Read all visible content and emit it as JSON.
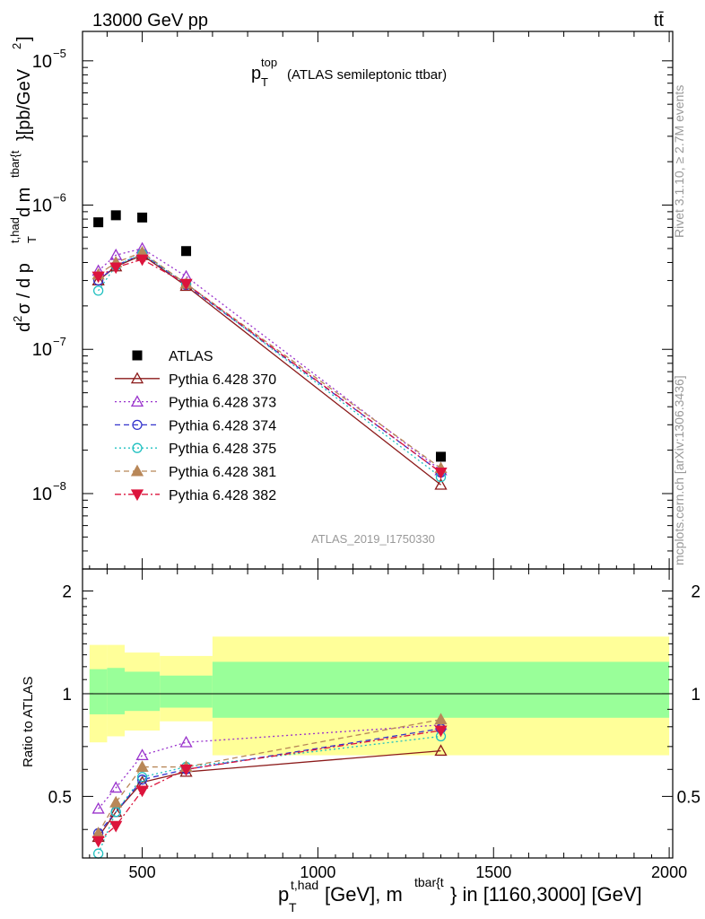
{
  "header": {
    "beam": "13000 GeV pp",
    "process": "tt̄"
  },
  "side": {
    "rivet": "Rivet 3.1.10, ≥ 2.7M events",
    "mcplots": "mcplots.cern.ch [arXiv:1306.3436]"
  },
  "chart_data": {
    "type": "scatter",
    "title": {
      "main": "p",
      "sub": "T",
      "sup": "top",
      "rest": "(ATLAS semileptonic ttbar)"
    },
    "analysis_label": "ATLAS_2019_I1750330",
    "yscale": "log",
    "ylim": [
      3e-09,
      1.6e-05
    ],
    "xlim": [
      330,
      2010
    ],
    "ratio_ylim": [
      0.33,
      2.32
    ],
    "ylabel": {
      "d2": "d",
      "two": "2",
      "sigma": "σ / d p",
      "T": "T",
      "thad": "t,had",
      "dm": " d m",
      "tbar": "tbar{t",
      "rest": "}[pb/GeV",
      "sq": "2",
      "close": "]"
    },
    "ratio_ylabel": "Ratio to ATLAS",
    "xlabel": {
      "p": "p",
      "T": "T",
      "thad": "t,had",
      "mid": " [GeV], m",
      "tbar": "tbar{t",
      "rest": "} in [1160,3000] [GeV]"
    },
    "y_ticks": [
      {
        "base": "10",
        "exp": "−5",
        "value": 1e-05
      },
      {
        "base": "10",
        "exp": "−6",
        "value": 1e-06
      },
      {
        "base": "10",
        "exp": "−7",
        "value": 1e-07
      },
      {
        "base": "10",
        "exp": "−8",
        "value": 1e-08
      }
    ],
    "ratio_ticks": [
      {
        "label": "0.5",
        "value": 0.5
      },
      {
        "label": "1",
        "value": 1
      },
      {
        "label": "2",
        "value": 2
      }
    ],
    "x_ticks": [
      {
        "label": "500",
        "value": 500
      },
      {
        "label": "1000",
        "value": 1000
      },
      {
        "label": "1500",
        "value": 1500
      },
      {
        "label": "2000",
        "value": 2000
      }
    ],
    "data": {
      "name": "ATLAS",
      "x": [
        375,
        425,
        500,
        625,
        1350
      ],
      "y": [
        7.6e-07,
        8.5e-07,
        8.2e-07,
        4.8e-07,
        1.8e-08
      ]
    },
    "bands": [
      {
        "x0": 350,
        "x1": 400,
        "yellow": [
          0.72,
          1.39
        ],
        "green": [
          0.87,
          1.18
        ]
      },
      {
        "x0": 400,
        "x1": 450,
        "yellow": [
          0.75,
          1.39
        ],
        "green": [
          0.87,
          1.19
        ]
      },
      {
        "x0": 450,
        "x1": 550,
        "yellow": [
          0.78,
          1.32
        ],
        "green": [
          0.89,
          1.16
        ]
      },
      {
        "x0": 550,
        "x1": 700,
        "yellow": [
          0.83,
          1.29
        ],
        "green": [
          0.91,
          1.13
        ]
      },
      {
        "x0": 700,
        "x1": 2000,
        "yellow": [
          0.66,
          1.47
        ],
        "green": [
          0.85,
          1.24
        ]
      }
    ],
    "series": [
      {
        "name": "Pythia 6.428 370",
        "color": "#8b1a1a",
        "marker": "triangle-open",
        "dash": "",
        "x": [
          375,
          425,
          500,
          625,
          1350
        ],
        "y": [
          3e-07,
          3.75e-07,
          4.5e-07,
          2.75e-07,
          1.15e-08
        ],
        "ratio": [
          0.38,
          0.45,
          0.55,
          0.59,
          0.68
        ]
      },
      {
        "name": "Pythia 6.428 373",
        "color": "#9932cc",
        "marker": "triangle-open",
        "dash": "2,3",
        "x": [
          375,
          425,
          500,
          625,
          1350
        ],
        "y": [
          3.5e-07,
          4.5e-07,
          5e-07,
          3.2e-07,
          1.45e-08
        ],
        "ratio": [
          0.46,
          0.53,
          0.66,
          0.72,
          0.81
        ]
      },
      {
        "name": "Pythia 6.428 374",
        "color": "#3333cc",
        "marker": "circle-open",
        "dash": "6,4",
        "x": [
          375,
          425,
          500,
          625,
          1350
        ],
        "y": [
          3e-07,
          3.8e-07,
          4.6e-07,
          2.8e-07,
          1.4e-08
        ],
        "ratio": [
          0.39,
          0.45,
          0.56,
          0.6,
          0.79
        ]
      },
      {
        "name": "Pythia 6.428 375",
        "color": "#20c0c0",
        "marker": "circle-open",
        "dash": "2,3",
        "x": [
          375,
          425,
          500,
          625,
          1350
        ],
        "y": [
          2.55e-07,
          3.8e-07,
          4.6e-07,
          2.85e-07,
          1.3e-08
        ],
        "ratio": [
          0.34,
          0.45,
          0.57,
          0.61,
          0.75
        ]
      },
      {
        "name": "Pythia 6.428 381",
        "color": "#b88758",
        "marker": "triangle-filled",
        "dash": "6,4",
        "x": [
          375,
          425,
          500,
          625,
          1350
        ],
        "y": [
          3.3e-07,
          4e-07,
          4.7e-07,
          2.85e-07,
          1.5e-08
        ],
        "ratio": [
          0.39,
          0.48,
          0.61,
          0.61,
          0.84
        ]
      },
      {
        "name": "Pythia 6.428 382",
        "color": "#dc143c",
        "marker": "triangle-down-filled",
        "dash": "7,3,2,3",
        "x": [
          375,
          425,
          500,
          625,
          1350
        ],
        "y": [
          3.2e-07,
          3.7e-07,
          4.2e-07,
          2.85e-07,
          1.4e-08
        ],
        "ratio": [
          0.37,
          0.41,
          0.52,
          0.6,
          0.78
        ]
      }
    ]
  }
}
